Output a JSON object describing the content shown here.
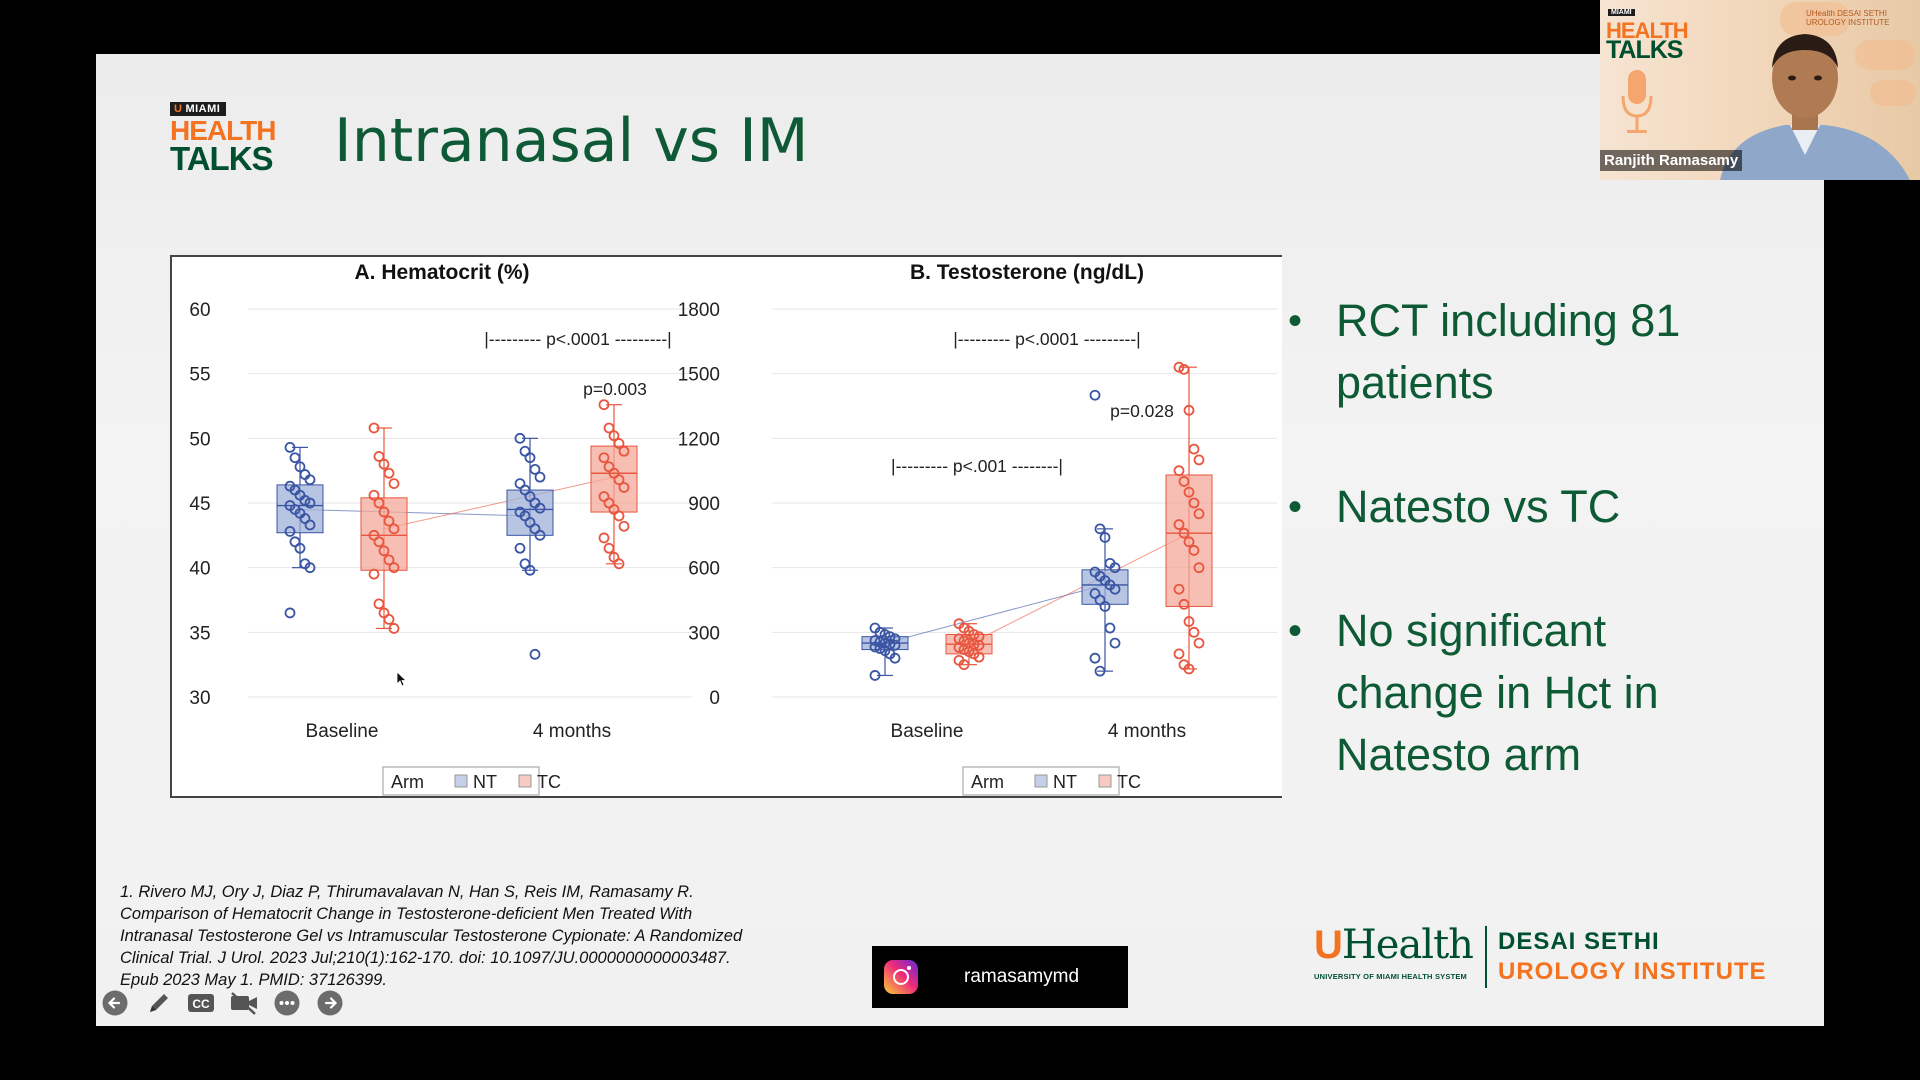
{
  "slide": {
    "title": "Intranasal vs IM",
    "logo": {
      "miami": "MIAMI",
      "health": "HEALTH",
      "talks": "TALKS"
    },
    "bullets": [
      "RCT including 81 patients",
      "Natesto vs TC",
      "No significant change in Hct in Natesto arm"
    ],
    "citation": "1. Rivero MJ, Ory J, Diaz P, Thirumavalavan N, Han S, Reis IM, Ramasamy R. Comparison of Hematocrit Change in Testosterone-deficient Men Treated With Intranasal Testosterone Gel vs Intramuscular Testosterone Cypionate: A Randomized Clinical Trial. J Urol. 2023 Jul;210(1):162-170. doi: 10.1097/JU.0000000000003487. Epub 2023 May 1. PMID: 37126399.",
    "institution": {
      "uhealth": "Health",
      "u": "U",
      "sub": "UNIVERSITY OF MIAMI HEALTH SYSTEM",
      "line1": "DESAI SETHI",
      "line2": "UROLOGY INSTITUTE"
    },
    "instagram_handle": "ramasamymd"
  },
  "presenter": {
    "name": "Ranjith Ramasamy",
    "brand": "UHealth DESAI SETHI UROLOGY INSTITUTE"
  },
  "toolbar": {
    "items": [
      "back-arrow-icon",
      "pen-icon",
      "cc-icon",
      "video-off-icon",
      "more-icon",
      "forward-arrow-icon"
    ]
  },
  "colors": {
    "nt": "#3a55a4",
    "tc": "#e8563f",
    "title_green": "#0f5a36",
    "brand_orange": "#f47321",
    "brand_green": "#005030"
  },
  "chart_data": [
    {
      "type": "box",
      "title": "A. Hematocrit (%)",
      "categories": [
        "Baseline",
        "4 months"
      ],
      "ylim": [
        30,
        60
      ],
      "yticks": [
        30,
        35,
        40,
        45,
        50,
        55,
        60
      ],
      "legend": {
        "title": "Arm",
        "items": [
          "NT",
          "TC"
        ]
      },
      "annotations": [
        "|--------- p<.0001 ---------|",
        "p=0.003"
      ],
      "series": [
        {
          "name": "NT",
          "boxes": [
            {
              "category": "Baseline",
              "q1": 42.7,
              "median": 44.8,
              "q3": 46.4,
              "whisker_low": 40,
              "whisker_high": 49.3,
              "mean": 44.5,
              "points": [
                49.3,
                48.5,
                47.8,
                47.2,
                46.8,
                46.3,
                46,
                45.6,
                45.2,
                45,
                44.8,
                44.5,
                44.2,
                43.8,
                43.3,
                42.8,
                42,
                41.5,
                40.3,
                40,
                36.5
              ]
            },
            {
              "category": "4 months",
              "q1": 42.5,
              "median": 44.5,
              "q3": 46,
              "whisker_low": 39.8,
              "whisker_high": 50,
              "mean": 44,
              "points": [
                50,
                49,
                48.5,
                47.6,
                47,
                46.5,
                46,
                45.5,
                45,
                44.6,
                44.3,
                44,
                43.5,
                43,
                42.5,
                41.5,
                40.3,
                39.8,
                33.3
              ]
            }
          ]
        },
        {
          "name": "TC",
          "boxes": [
            {
              "category": "Baseline",
              "q1": 39.8,
              "median": 42.5,
              "q3": 45.4,
              "whisker_low": 35.3,
              "whisker_high": 50.8,
              "mean": 43,
              "points": [
                50.8,
                48.6,
                48,
                47.3,
                46.5,
                45.6,
                45,
                44.3,
                43.6,
                43,
                42.5,
                42,
                41.3,
                40.6,
                40,
                39.5,
                37.2,
                36.5,
                36,
                35.3
              ]
            },
            {
              "category": "4 months",
              "q1": 44.3,
              "median": 47.3,
              "q3": 49.4,
              "whisker_low": 40.3,
              "whisker_high": 52.6,
              "mean": 47,
              "points": [
                52.6,
                50.8,
                50.2,
                49.6,
                49,
                48.5,
                47.8,
                47.3,
                46.8,
                46.2,
                45.5,
                45,
                44.5,
                44,
                43.2,
                42.3,
                41.5,
                40.8,
                40.3
              ]
            }
          ]
        }
      ]
    },
    {
      "type": "box",
      "title": "B. Testosterone (ng/dL)",
      "categories": [
        "Baseline",
        "4 months"
      ],
      "ylim": [
        0,
        1800
      ],
      "yticks": [
        0,
        300,
        600,
        900,
        1200,
        1500,
        1800
      ],
      "legend": {
        "title": "Arm",
        "items": [
          "NT",
          "TC"
        ]
      },
      "annotations": [
        "|--------- p<.0001 ---------|",
        "|--------- p<.001 --------|",
        "p=0.028"
      ],
      "series": [
        {
          "name": "NT",
          "boxes": [
            {
              "category": "Baseline",
              "q1": 220,
              "median": 250,
              "q3": 280,
              "whisker_low": 100,
              "whisker_high": 320,
              "mean": 250,
              "points": [
                320,
                300,
                290,
                280,
                270,
                262,
                255,
                250,
                245,
                240,
                232,
                225,
                215,
                200,
                180,
                100
              ]
            },
            {
              "category": "4 months",
              "q1": 430,
              "median": 520,
              "q3": 590,
              "whisker_low": 120,
              "whisker_high": 780,
              "mean": 520,
              "points": [
                1400,
                780,
                740,
                620,
                600,
                580,
                560,
                540,
                520,
                500,
                480,
                450,
                420,
                320,
                250,
                180,
                120
              ]
            }
          ]
        },
        {
          "name": "TC",
          "boxes": [
            {
              "category": "Baseline",
              "q1": 200,
              "median": 245,
              "q3": 290,
              "whisker_low": 150,
              "whisker_high": 340,
              "mean": 245,
              "points": [
                340,
                320,
                305,
                290,
                280,
                270,
                260,
                250,
                245,
                240,
                230,
                220,
                210,
                200,
                185,
                170,
                150
              ]
            },
            {
              "category": "4 months",
              "q1": 420,
              "median": 760,
              "q3": 1030,
              "whisker_low": 130,
              "whisker_high": 1530,
              "mean": 760,
              "points": [
                1530,
                1520,
                1330,
                1150,
                1100,
                1050,
                1000,
                950,
                900,
                850,
                800,
                760,
                720,
                680,
                600,
                500,
                430,
                350,
                300,
                250,
                200,
                150,
                130
              ]
            }
          ]
        }
      ]
    }
  ]
}
